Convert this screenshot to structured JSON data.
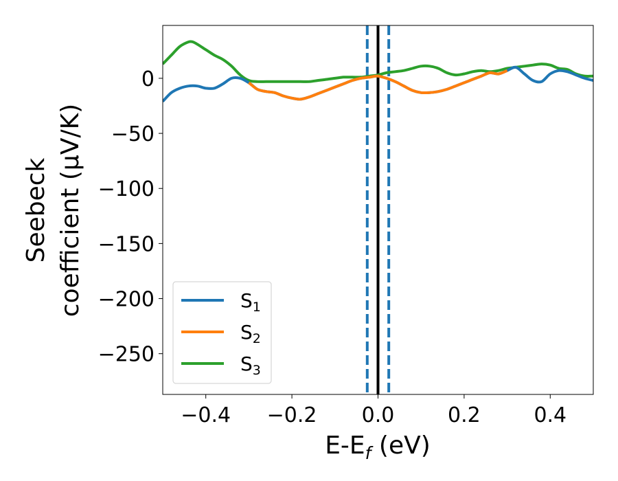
{
  "chart_data": {
    "type": "line",
    "title": "",
    "xlabel": {
      "main": "E-E",
      "sub": "f",
      "tail": " (eV)"
    },
    "ylabel": {
      "line1": "Seebeck",
      "line2": "coefficient  (μV/K)"
    },
    "xlim": [
      -0.5,
      0.5
    ],
    "ylim": [
      -287,
      48
    ],
    "xticks": [
      -0.4,
      -0.2,
      0.0,
      0.2,
      0.4
    ],
    "xtick_labels": [
      "−0.4",
      "−0.2",
      "0.0",
      "0.2",
      "0.4"
    ],
    "yticks": [
      0,
      -50,
      -100,
      -150,
      -200,
      -250
    ],
    "ytick_labels": [
      "0",
      "−50",
      "−100",
      "−150",
      "−200",
      "−250"
    ],
    "grid": false,
    "legend_position": "lower-left",
    "series": [
      {
        "name": "S1",
        "label_main": "S",
        "label_sub": "1",
        "color": "#1f77b4",
        "x": [
          -0.5,
          -0.48,
          -0.46,
          -0.44,
          -0.42,
          -0.4,
          -0.38,
          -0.36,
          -0.34,
          -0.32,
          -0.3,
          -0.28,
          -0.26,
          -0.24,
          -0.22,
          -0.2,
          -0.18,
          -0.16,
          -0.14,
          -0.12,
          -0.1,
          -0.08,
          -0.06,
          -0.04,
          -0.02,
          0.0,
          0.02,
          0.04,
          0.06,
          0.08,
          0.1,
          0.12,
          0.14,
          0.16,
          0.18,
          0.2,
          0.22,
          0.24,
          0.26,
          0.28,
          0.3,
          0.32,
          0.34,
          0.36,
          0.38,
          0.4,
          0.42,
          0.44,
          0.46,
          0.48,
          0.5
        ],
        "y": [
          -21,
          -13,
          -9,
          -7,
          -7,
          -9,
          -9,
          -5,
          0,
          0,
          -4,
          -10,
          -12,
          -13,
          -16,
          -18,
          -19,
          -17,
          -14,
          -11,
          -8,
          -5,
          -2,
          0,
          1,
          2,
          0,
          -3,
          -7,
          -11,
          -13,
          -13,
          -12,
          -10,
          -7,
          -4,
          -1,
          2,
          5,
          4,
          7,
          10,
          4,
          -2,
          -3,
          4,
          7,
          6,
          3,
          0,
          -2
        ]
      },
      {
        "name": "S2",
        "label_main": "S",
        "label_sub": "2",
        "color": "#ff7f0e",
        "x": [
          -0.3,
          -0.28,
          -0.26,
          -0.24,
          -0.22,
          -0.2,
          -0.18,
          -0.16,
          -0.14,
          -0.12,
          -0.1,
          -0.08,
          -0.06,
          -0.04,
          -0.02,
          0.0,
          0.02,
          0.04,
          0.06,
          0.08,
          0.1,
          0.12,
          0.14,
          0.16,
          0.18,
          0.2,
          0.22,
          0.24,
          0.26,
          0.28,
          0.3
        ],
        "y": [
          -4,
          -10,
          -12,
          -13,
          -16,
          -18,
          -19,
          -17,
          -14,
          -11,
          -8,
          -5,
          -2,
          0,
          1,
          2,
          0,
          -3,
          -7,
          -11,
          -13,
          -13,
          -12,
          -10,
          -7,
          -4,
          -1,
          2,
          5,
          4,
          7
        ]
      },
      {
        "name": "S3",
        "label_main": "S",
        "label_sub": "3",
        "color": "#2ca02c",
        "x": [
          -0.5,
          -0.48,
          -0.46,
          -0.44,
          -0.43,
          -0.42,
          -0.4,
          -0.38,
          -0.36,
          -0.34,
          -0.32,
          -0.3,
          -0.28,
          -0.26,
          -0.24,
          -0.22,
          -0.2,
          -0.18,
          -0.16,
          -0.14,
          -0.12,
          -0.1,
          -0.08,
          -0.06,
          -0.04,
          -0.02,
          0.0,
          0.02,
          0.04,
          0.06,
          0.08,
          0.1,
          0.12,
          0.14,
          0.16,
          0.18,
          0.2,
          0.22,
          0.24,
          0.26,
          0.28,
          0.3,
          0.32,
          0.34,
          0.36,
          0.38,
          0.4,
          0.42,
          0.44,
          0.46,
          0.48,
          0.5
        ],
        "y": [
          13,
          21,
          29,
          33,
          33,
          31,
          26,
          21,
          17,
          11,
          3,
          -2,
          -3,
          -3,
          -3,
          -3,
          -3,
          -3,
          -3,
          -2,
          -1,
          0,
          1,
          1,
          1,
          2,
          3,
          5,
          6,
          7,
          9,
          11,
          11,
          9,
          5,
          3,
          4,
          6,
          7,
          6,
          7,
          9,
          10,
          11,
          12,
          13,
          12,
          9,
          8,
          4,
          2,
          2
        ]
      }
    ],
    "reference_lines": [
      {
        "x": 0.0,
        "style": "solid",
        "color": "#000000"
      },
      {
        "x": -0.025,
        "style": "dashed",
        "color": "#1f77b4"
      },
      {
        "x": 0.025,
        "style": "dashed",
        "color": "#1f77b4"
      }
    ]
  }
}
